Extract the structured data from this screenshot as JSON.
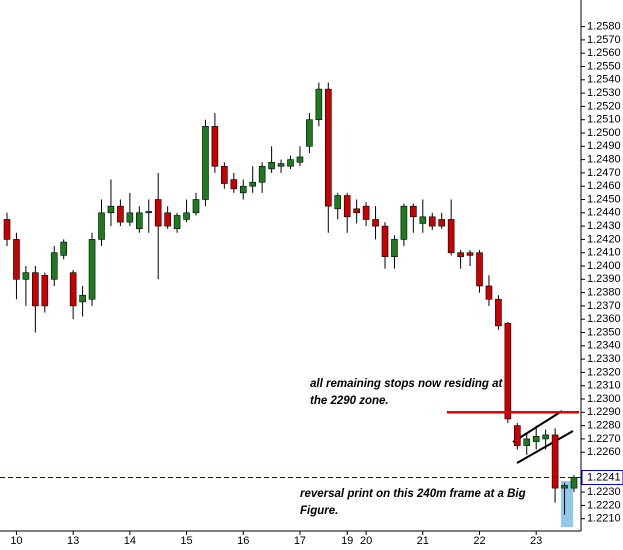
{
  "chart_data": {
    "type": "candlestick",
    "categories": [
      null,
      "10",
      null,
      null,
      null,
      null,
      null,
      "13",
      null,
      null,
      null,
      null,
      null,
      "14",
      null,
      null,
      null,
      null,
      null,
      "15",
      null,
      null,
      null,
      null,
      null,
      "16",
      null,
      null,
      null,
      null,
      null,
      "17",
      null,
      null,
      null,
      null,
      "19",
      null,
      "20",
      null,
      null,
      null,
      null,
      null,
      "21",
      null,
      null,
      null,
      null,
      null,
      "22",
      null,
      null,
      null,
      null,
      null,
      "23",
      null,
      null,
      null,
      null
    ],
    "open": [
      1.2435,
      1.242,
      1.239,
      1.2395,
      1.2393,
      1.239,
      1.2408,
      1.2395,
      1.2373,
      1.2375,
      1.242,
      1.244,
      1.2445,
      1.2433,
      1.2428,
      1.244,
      1.245,
      1.244,
      1.2428,
      1.2435,
      1.244,
      1.245,
      1.2505,
      1.2475,
      1.2465,
      1.2455,
      1.246,
      1.2463,
      1.2473,
      1.2475,
      1.2475,
      1.2478,
      1.249,
      1.251,
      1.2533,
      1.2443,
      1.2453,
      1.2443,
      1.2445,
      1.2435,
      1.243,
      1.2407,
      1.242,
      1.2445,
      1.2432,
      1.2437,
      1.2435,
      1.2435,
      1.241,
      1.241,
      1.241,
      1.2385,
      1.2375,
      1.2357,
      1.228,
      1.2265,
      1.2268,
      1.227,
      1.2273,
      1.2233,
      1.2233
    ],
    "high": [
      1.244,
      1.2425,
      1.24,
      1.24,
      1.2395,
      1.2415,
      1.242,
      1.2397,
      1.2385,
      1.2425,
      1.245,
      1.2465,
      1.245,
      1.2455,
      1.2445,
      1.245,
      1.247,
      1.2445,
      1.244,
      1.245,
      1.2455,
      1.251,
      1.2515,
      1.2478,
      1.247,
      1.2465,
      1.2475,
      1.2478,
      1.249,
      1.248,
      1.2483,
      1.249,
      1.2515,
      1.2538,
      1.2538,
      1.2455,
      1.2455,
      1.245,
      1.2448,
      1.2445,
      1.2433,
      1.2423,
      1.2447,
      1.2447,
      1.245,
      1.244,
      1.244,
      1.245,
      1.2412,
      1.2412,
      1.2412,
      1.2393,
      1.2378,
      1.2358,
      1.2282,
      1.2275,
      1.228,
      1.2277,
      1.2278,
      1.2237,
      1.2243
    ],
    "low": [
      1.2415,
      1.2375,
      1.237,
      1.235,
      1.2365,
      1.2385,
      1.2405,
      1.236,
      1.2362,
      1.237,
      1.2415,
      1.243,
      1.243,
      1.243,
      1.2425,
      1.2425,
      1.239,
      1.2428,
      1.2425,
      1.2433,
      1.2438,
      1.2445,
      1.247,
      1.2458,
      1.2455,
      1.245,
      1.2455,
      1.2455,
      1.247,
      1.247,
      1.2473,
      1.2475,
      1.2485,
      1.2505,
      1.2425,
      1.2435,
      1.2425,
      1.2432,
      1.243,
      1.242,
      1.2398,
      1.2398,
      1.2415,
      1.2425,
      1.2425,
      1.2427,
      1.2428,
      1.2408,
      1.2398,
      1.24,
      1.238,
      1.237,
      1.2352,
      1.2282,
      1.2262,
      1.2258,
      1.2262,
      1.2262,
      1.2222,
      1.2213,
      1.223
    ],
    "close": [
      1.242,
      1.239,
      1.2395,
      1.237,
      1.237,
      1.241,
      1.2418,
      1.237,
      1.2378,
      1.242,
      1.244,
      1.2445,
      1.2433,
      1.244,
      1.244,
      1.2441,
      1.243,
      1.243,
      1.2438,
      1.244,
      1.245,
      1.2505,
      1.2475,
      1.2462,
      1.2458,
      1.246,
      1.2463,
      1.2475,
      1.2478,
      1.2477,
      1.248,
      1.2482,
      1.251,
      1.2533,
      1.2445,
      1.2453,
      1.2437,
      1.244,
      1.2435,
      1.243,
      1.2407,
      1.242,
      1.2445,
      1.2437,
      1.2437,
      1.243,
      1.243,
      1.241,
      1.2407,
      1.2408,
      1.2385,
      1.2375,
      1.2355,
      1.2285,
      1.2265,
      1.227,
      1.2272,
      1.2273,
      1.2233,
      1.2235,
      1.2241
    ],
    "up_color": "#1e7a1e",
    "down_color": "#c80000",
    "ylim": [
      1.2197,
      1.26
    ],
    "yticks": [
      {
        "value": 1.221,
        "label": "1.2210"
      },
      {
        "value": 1.222,
        "label": "1.2220"
      },
      {
        "value": 1.223,
        "label": "1.2230"
      },
      {
        "value": 1.226,
        "label": "1.2260"
      },
      {
        "value": 1.227,
        "label": "1.2270"
      },
      {
        "value": 1.228,
        "label": "1.2280"
      },
      {
        "value": 1.229,
        "label": "1.2290"
      },
      {
        "value": 1.23,
        "label": "1.2300"
      },
      {
        "value": 1.231,
        "label": "1.2310"
      },
      {
        "value": 1.232,
        "label": "1.2320"
      },
      {
        "value": 1.233,
        "label": "1.2330"
      },
      {
        "value": 1.234,
        "label": "1.2340"
      },
      {
        "value": 1.235,
        "label": "1.2350"
      },
      {
        "value": 1.236,
        "label": "1.2360"
      },
      {
        "value": 1.237,
        "label": "1.2370"
      },
      {
        "value": 1.238,
        "label": "1.2380"
      },
      {
        "value": 1.239,
        "label": "1.2390"
      },
      {
        "value": 1.24,
        "label": "1.2400"
      },
      {
        "value": 1.241,
        "label": "1.2410"
      },
      {
        "value": 1.242,
        "label": "1.2420"
      },
      {
        "value": 1.243,
        "label": "1.2430"
      },
      {
        "value": 1.244,
        "label": "1.2440"
      },
      {
        "value": 1.245,
        "label": "1.2450"
      },
      {
        "value": 1.246,
        "label": "1.2460"
      },
      {
        "value": 1.247,
        "label": "1.2470"
      },
      {
        "value": 1.248,
        "label": "1.2480"
      },
      {
        "value": 1.249,
        "label": "1.2490"
      },
      {
        "value": 1.25,
        "label": "1.2500"
      },
      {
        "value": 1.251,
        "label": "1.2510"
      },
      {
        "value": 1.252,
        "label": "1.2520"
      },
      {
        "value": 1.253,
        "label": "1.2530"
      },
      {
        "value": 1.254,
        "label": "1.2540"
      },
      {
        "value": 1.255,
        "label": "1.2550"
      },
      {
        "value": 1.256,
        "label": "1.2560"
      },
      {
        "value": 1.257,
        "label": "1.2570"
      },
      {
        "value": 1.258,
        "label": "1.2580"
      }
    ],
    "last_price": {
      "value": 1.2241,
      "label": "1.2241",
      "color": "#0000cc"
    },
    "level": {
      "value": 1.229,
      "color": "#e00000"
    },
    "annotations": [
      {
        "lines": [
          "all remaining stops now residing at",
          "the 2290 zone."
        ]
      },
      {
        "lines": [
          "reversal print on this 240m frame at a Big",
          "Figure."
        ]
      }
    ]
  }
}
